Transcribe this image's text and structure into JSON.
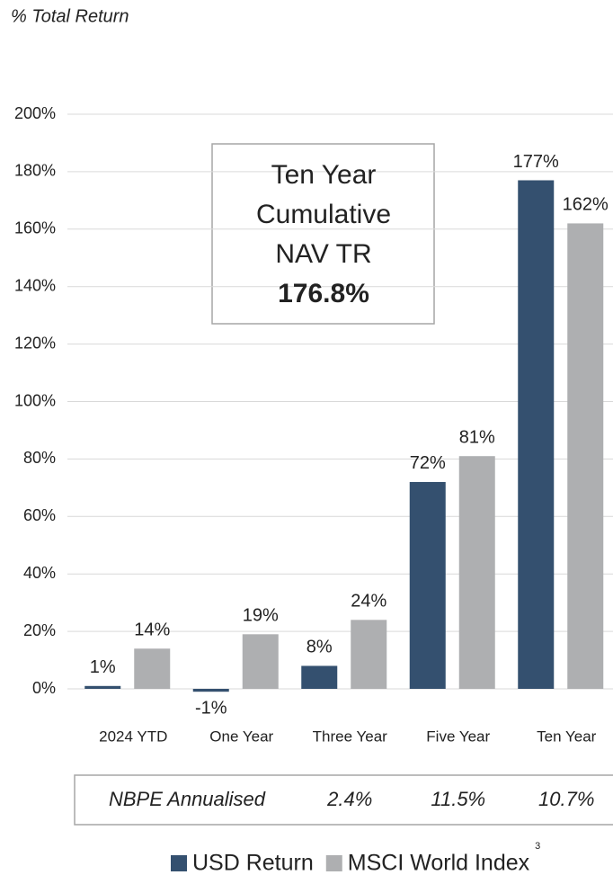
{
  "chart_data": {
    "type": "bar",
    "title": "% Total Return",
    "categories": [
      "2024 YTD",
      "One Year",
      "Three Year",
      "Five Year",
      "Ten Year"
    ],
    "series": [
      {
        "name": "USD Return",
        "color": "#34506f",
        "values": [
          1,
          -1,
          8,
          72,
          177
        ],
        "value_labels": [
          "1%",
          "-1%",
          "8%",
          "72%",
          "177%"
        ]
      },
      {
        "name": "MSCI World Index",
        "color": "#aeafb1",
        "values": [
          14,
          19,
          24,
          81,
          162
        ],
        "value_labels": [
          "14%",
          "19%",
          "24%",
          "81%",
          "162%"
        ]
      }
    ],
    "legend_note": "3",
    "ylim": [
      0,
      200
    ],
    "yticks": [
      {
        "value": 0,
        "label": "0%"
      },
      {
        "value": 20,
        "label": "20%"
      },
      {
        "value": 40,
        "label": "40%"
      },
      {
        "value": 60,
        "label": "60%"
      },
      {
        "value": 80,
        "label": "80%"
      },
      {
        "value": 100,
        "label": "100%"
      },
      {
        "value": 120,
        "label": "120%"
      },
      {
        "value": 140,
        "label": "140%"
      },
      {
        "value": 160,
        "label": "160%"
      },
      {
        "value": 180,
        "label": "180%"
      },
      {
        "value": 200,
        "label": "200%"
      }
    ],
    "grid": true,
    "annotation": {
      "lines": [
        "Ten Year",
        "Cumulative",
        "NAV TR"
      ],
      "highlight": "176.8%"
    },
    "table": {
      "label": "NBPE Annualised",
      "values": [
        "2.4%",
        "11.5%",
        "10.7%"
      ]
    }
  }
}
